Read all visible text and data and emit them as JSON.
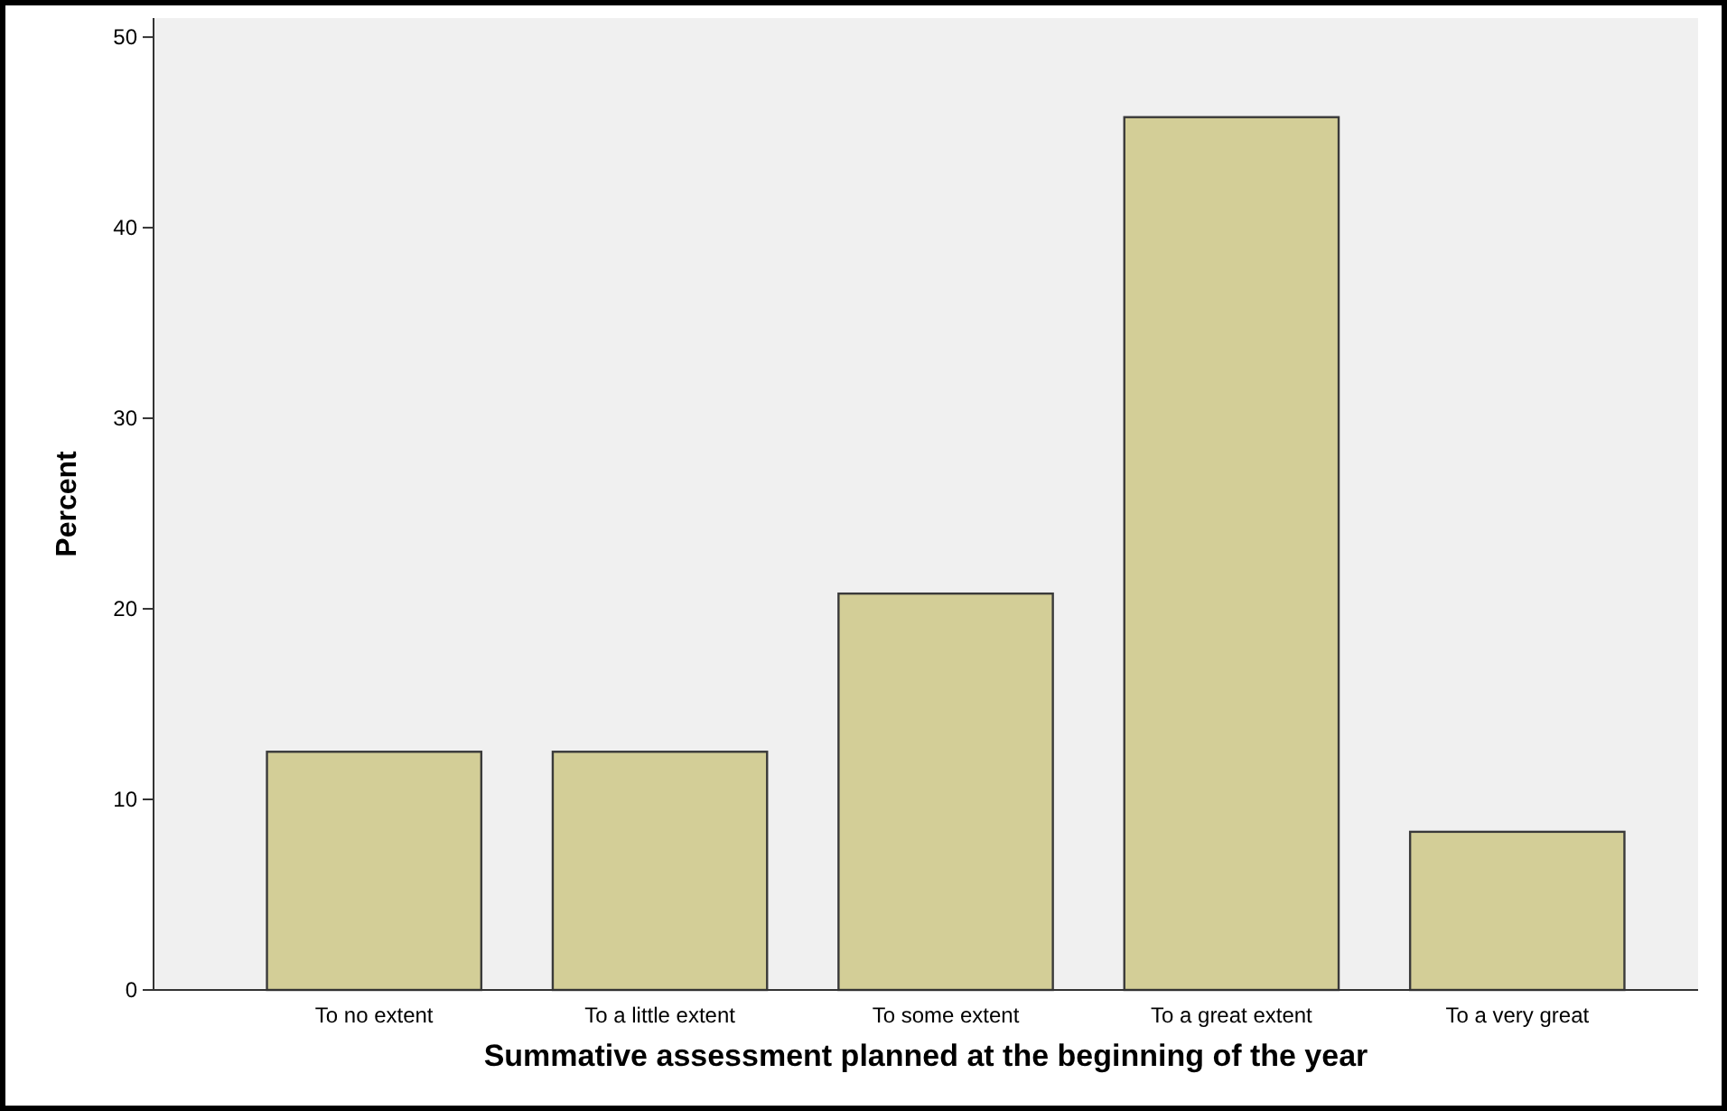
{
  "chart_data": {
    "type": "bar",
    "xlabel": "Summative assessment planned at the beginning of the year",
    "ylabel": "Percent",
    "categories": [
      "To no extent",
      "To a little extent",
      "To some extent",
      "To a great extent",
      "To a very great"
    ],
    "values": [
      12.5,
      12.5,
      20.8,
      45.8,
      8.3
    ],
    "color": "#d3ce97",
    "ylim": [
      0,
      51
    ],
    "yticks": [
      0,
      10,
      20,
      30,
      40,
      50
    ],
    "grid": false
  }
}
